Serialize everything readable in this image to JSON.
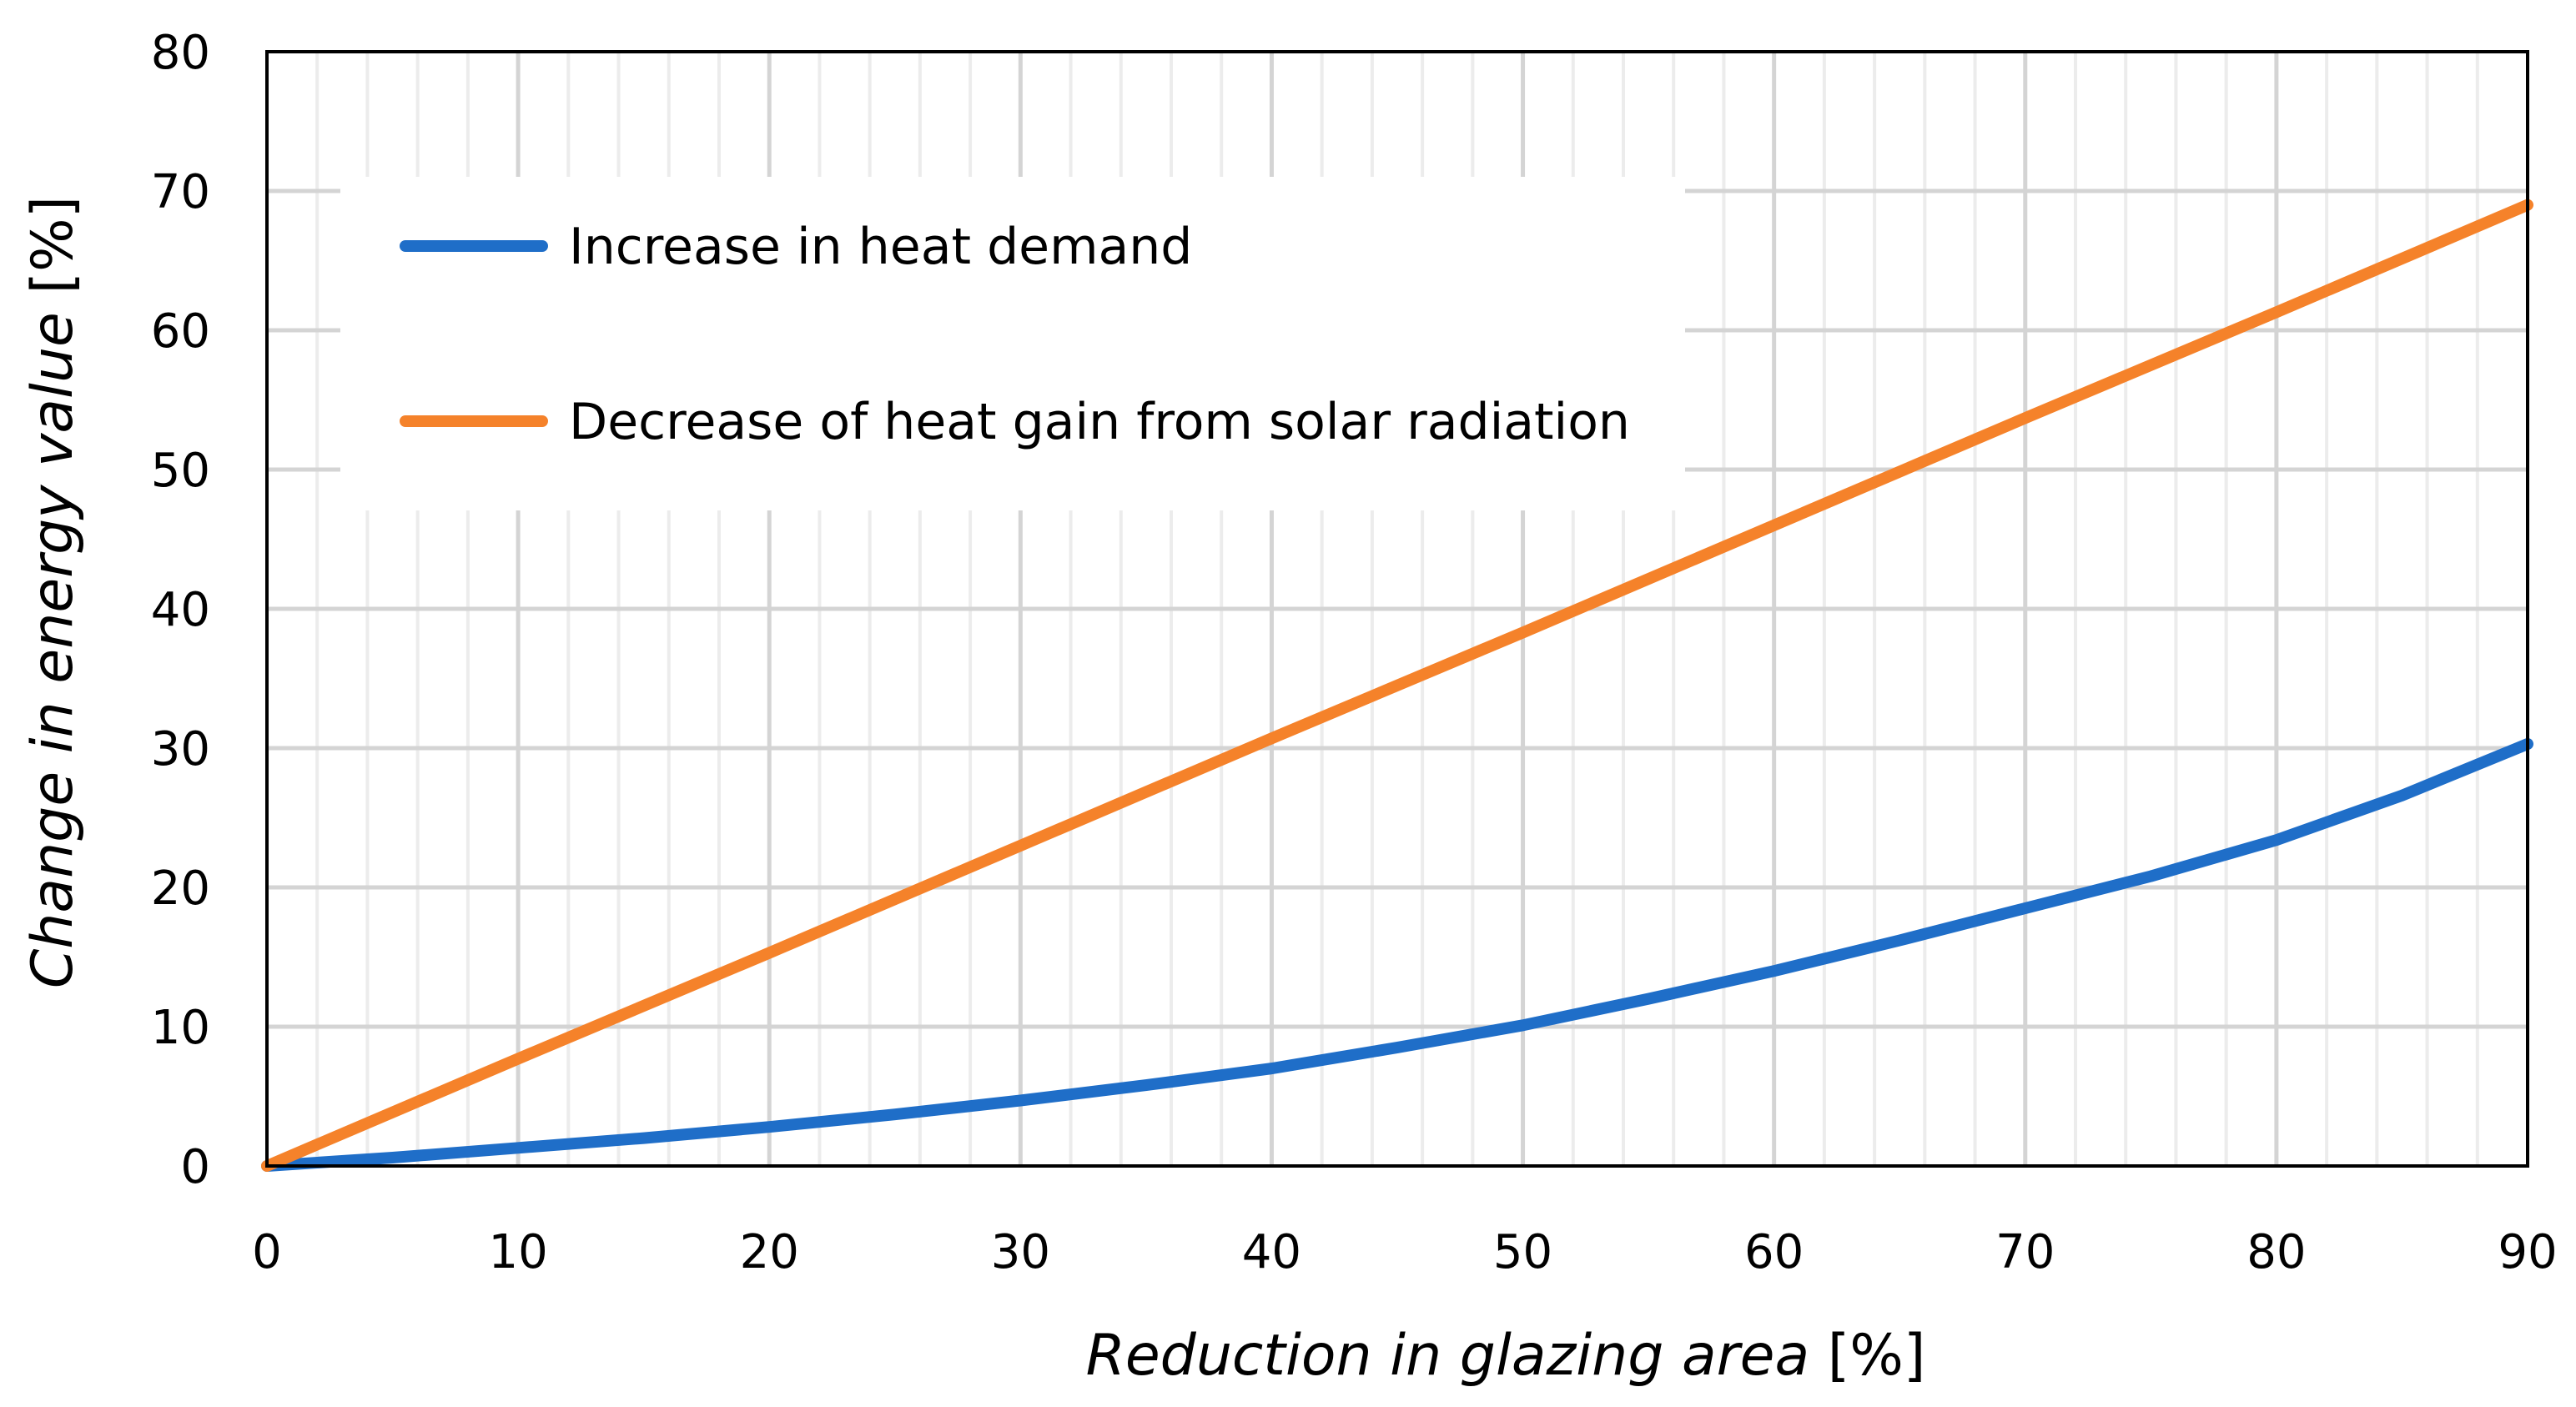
{
  "chart_data": {
    "type": "line",
    "title": "",
    "xlabel": {
      "italic": "Reduction in glazing area",
      "unit": " [%]"
    },
    "ylabel": {
      "italic": "Change in energy value",
      "unit": " [%]"
    },
    "xlim": [
      0,
      90
    ],
    "ylim": [
      0,
      80
    ],
    "x_ticks": [
      0,
      10,
      20,
      30,
      40,
      50,
      60,
      70,
      80,
      90
    ],
    "y_ticks": [
      0,
      10,
      20,
      30,
      40,
      50,
      60,
      70,
      80
    ],
    "grid": true,
    "legend_position": "top-left",
    "series": [
      {
        "name": "Increase in heat demand",
        "color": "#1f6ec8",
        "x": [
          0,
          5,
          10,
          15,
          20,
          25,
          30,
          35,
          40,
          45,
          50,
          55,
          60,
          65,
          70,
          75,
          80,
          85,
          90
        ],
        "y": [
          0,
          0.6,
          1.3,
          2.0,
          2.8,
          3.7,
          4.7,
          5.8,
          7.0,
          8.5,
          10.1,
          12.0,
          14.0,
          16.2,
          18.5,
          20.8,
          23.4,
          26.6,
          30.3
        ]
      },
      {
        "name": "Decrease of heat gain from solar radiation",
        "color": "#f5822a",
        "x": [
          0,
          10,
          20,
          30,
          40,
          50,
          60,
          70,
          80,
          90
        ],
        "y": [
          0,
          7.7,
          15.3,
          23.0,
          30.7,
          38.3,
          46.0,
          53.7,
          61.3,
          69.0
        ]
      }
    ]
  }
}
